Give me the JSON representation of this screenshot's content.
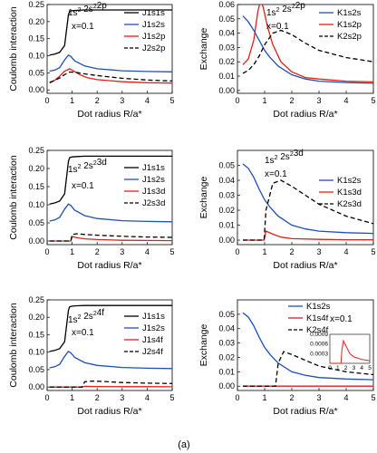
{
  "figure_label": "(a)",
  "chart_data": [
    {
      "type": "line",
      "panel": "coulomb-2p",
      "ylabel": "Coulomb interaction",
      "xlabel": "Dot radius R/a*",
      "xlim": [
        0,
        5
      ],
      "ylim": [
        -0.01,
        0.25
      ],
      "xticks": [
        0,
        1,
        2,
        3,
        4,
        5
      ],
      "yticks": [
        0.0,
        0.05,
        0.1,
        0.15,
        0.2,
        0.25
      ],
      "ytick_labels": [
        "0.00",
        "0.05",
        "0.10",
        "0.15",
        "0.20",
        "0.25"
      ],
      "annotations": [
        "1s² 2s²2p",
        "x=0.1"
      ],
      "legend_position": "top-right",
      "series": [
        {
          "name": "J1s1s",
          "color": "#000000",
          "dash": "solid",
          "x": [
            0.1,
            0.3,
            0.5,
            0.7,
            0.85,
            0.9,
            1.0,
            1.2,
            1.5,
            2.0,
            3.0,
            4.0,
            5.0
          ],
          "y": [
            0.102,
            0.105,
            0.11,
            0.13,
            0.22,
            0.23,
            0.232,
            0.233,
            0.234,
            0.234,
            0.234,
            0.234,
            0.234
          ]
        },
        {
          "name": "J1s2s",
          "color": "#1f4fb5",
          "dash": "solid",
          "x": [
            0.1,
            0.3,
            0.5,
            0.7,
            0.85,
            0.95,
            1.1,
            1.5,
            2.0,
            3.0,
            4.0,
            5.0
          ],
          "y": [
            0.055,
            0.058,
            0.065,
            0.088,
            0.102,
            0.098,
            0.085,
            0.07,
            0.062,
            0.056,
            0.054,
            0.053
          ]
        },
        {
          "name": "J1s2p",
          "color": "#e0201b",
          "dash": "solid",
          "x": [
            0.1,
            0.3,
            0.5,
            0.7,
            0.9,
            1.0,
            1.3,
            1.6,
            2.0,
            3.0,
            4.0,
            5.0
          ],
          "y": [
            0.02,
            0.028,
            0.04,
            0.055,
            0.062,
            0.058,
            0.045,
            0.036,
            0.03,
            0.024,
            0.021,
            0.02
          ]
        },
        {
          "name": "J2s2p",
          "color": "#000000",
          "dash": "dashed",
          "x": [
            0.1,
            0.3,
            0.5,
            0.7,
            0.9,
            1.1,
            1.4,
            2.0,
            3.0,
            4.0,
            5.0
          ],
          "y": [
            0.022,
            0.028,
            0.035,
            0.045,
            0.052,
            0.052,
            0.048,
            0.042,
            0.034,
            0.029,
            0.026
          ]
        }
      ]
    },
    {
      "type": "line",
      "panel": "exchange-2p",
      "ylabel": "Exchange",
      "xlabel": "Dot radius R/a*",
      "xlim": [
        0,
        5
      ],
      "ylim": [
        -0.002,
        0.06
      ],
      "xticks": [
        0,
        1,
        2,
        3,
        4,
        5
      ],
      "yticks": [
        0.0,
        0.01,
        0.02,
        0.03,
        0.04,
        0.05,
        0.06
      ],
      "ytick_labels": [
        "0.00",
        "0.01",
        "0.02",
        "0.03",
        "0.04",
        "0.05",
        "0.06"
      ],
      "annotations": [
        "1s² 2s²2p",
        "x=0.1"
      ],
      "legend_position": "top-right",
      "series": [
        {
          "name": "K1s2s",
          "color": "#1f4fb5",
          "dash": "solid",
          "x": [
            0.2,
            0.4,
            0.6,
            0.8,
            1.0,
            1.2,
            1.5,
            2.0,
            2.5,
            3.0,
            4.0,
            5.0
          ],
          "y": [
            0.052,
            0.048,
            0.042,
            0.035,
            0.028,
            0.023,
            0.017,
            0.011,
            0.008,
            0.0065,
            0.0055,
            0.005
          ]
        },
        {
          "name": "K1s2p",
          "color": "#e0201b",
          "dash": "solid",
          "x": [
            0.2,
            0.4,
            0.6,
            0.75,
            0.85,
            0.95,
            1.1,
            1.3,
            1.6,
            2.0,
            2.5,
            3.0,
            4.0,
            5.0
          ],
          "y": [
            0.018,
            0.022,
            0.035,
            0.055,
            0.063,
            0.058,
            0.045,
            0.032,
            0.02,
            0.013,
            0.009,
            0.008,
            0.0065,
            0.006
          ]
        },
        {
          "name": "K2s2p",
          "color": "#000000",
          "dash": "dashed",
          "x": [
            0.2,
            0.4,
            0.6,
            0.8,
            1.0,
            1.3,
            1.6,
            2.0,
            2.5,
            3.0,
            4.0,
            5.0
          ],
          "y": [
            0.012,
            0.014,
            0.018,
            0.024,
            0.032,
            0.04,
            0.042,
            0.039,
            0.033,
            0.028,
            0.023,
            0.02
          ]
        }
      ]
    },
    {
      "type": "line",
      "panel": "coulomb-3d",
      "ylabel": "Coulomb interaction",
      "xlabel": "Dot radius R/a*",
      "xlim": [
        0,
        5
      ],
      "ylim": [
        -0.01,
        0.25
      ],
      "xticks": [
        0,
        1,
        2,
        3,
        4,
        5
      ],
      "yticks": [
        0.0,
        0.05,
        0.1,
        0.15,
        0.2,
        0.25
      ],
      "ytick_labels": [
        "0.00",
        "0.05",
        "0.10",
        "0.15",
        "0.20",
        "0.25"
      ],
      "annotations": [
        "1s² 2s²3d",
        "x=0.1"
      ],
      "legend_position": "top-right",
      "series": [
        {
          "name": "J1s1s",
          "color": "#000000",
          "dash": "solid",
          "x": [
            0.1,
            0.3,
            0.5,
            0.7,
            0.85,
            0.9,
            1.0,
            1.2,
            1.5,
            2.0,
            3.0,
            4.0,
            5.0
          ],
          "y": [
            0.102,
            0.105,
            0.11,
            0.13,
            0.22,
            0.23,
            0.232,
            0.233,
            0.234,
            0.234,
            0.234,
            0.234,
            0.234
          ]
        },
        {
          "name": "J1s2s",
          "color": "#1f4fb5",
          "dash": "solid",
          "x": [
            0.1,
            0.3,
            0.5,
            0.7,
            0.85,
            0.95,
            1.1,
            1.5,
            2.0,
            3.0,
            4.0,
            5.0
          ],
          "y": [
            0.055,
            0.058,
            0.065,
            0.088,
            0.102,
            0.098,
            0.085,
            0.07,
            0.062,
            0.056,
            0.054,
            0.053
          ]
        },
        {
          "name": "J1s3d",
          "color": "#e0201b",
          "dash": "solid",
          "x": [
            0.1,
            0.8,
            0.95,
            1.0,
            1.2,
            1.5,
            2.0,
            3.0,
            4.0,
            5.0
          ],
          "y": [
            0.0,
            0.0,
            0.0,
            0.012,
            0.009,
            0.006,
            0.004,
            0.002,
            0.0015,
            0.001
          ]
        },
        {
          "name": "J2s3d",
          "color": "#000000",
          "dash": "dashed",
          "x": [
            0.1,
            0.8,
            0.95,
            1.0,
            1.2,
            1.5,
            2.0,
            3.0,
            4.0,
            5.0
          ],
          "y": [
            0.0,
            0.0,
            0.0,
            0.018,
            0.02,
            0.018,
            0.016,
            0.013,
            0.011,
            0.01
          ]
        }
      ]
    },
    {
      "type": "line",
      "panel": "exchange-3d",
      "ylabel": "Exchange",
      "xlabel": "Dot radius R/a*",
      "xlim": [
        0,
        5
      ],
      "ylim": [
        -0.003,
        0.06
      ],
      "xticks": [
        0,
        1,
        2,
        3,
        4,
        5
      ],
      "yticks": [
        0.0,
        0.01,
        0.02,
        0.03,
        0.04,
        0.05
      ],
      "ytick_labels": [
        "0.00",
        "0.01",
        "0.02",
        "0.03",
        "0.04",
        "0.05"
      ],
      "annotations": [
        "1s² 2s²3d",
        "x=0.1"
      ],
      "legend_position": "right",
      "series": [
        {
          "name": "K1s2s",
          "color": "#1f4fb5",
          "dash": "solid",
          "x": [
            0.2,
            0.4,
            0.6,
            0.8,
            1.0,
            1.2,
            1.5,
            2.0,
            2.5,
            3.0,
            4.0,
            5.0
          ],
          "y": [
            0.051,
            0.048,
            0.042,
            0.034,
            0.027,
            0.022,
            0.016,
            0.01,
            0.0075,
            0.006,
            0.005,
            0.0045
          ]
        },
        {
          "name": "K1s3d",
          "color": "#e0201b",
          "dash": "solid",
          "x": [
            0.2,
            0.9,
            0.98,
            1.05,
            1.3,
            1.6,
            2.0,
            3.0,
            4.0,
            5.0
          ],
          "y": [
            0.0,
            0.0,
            0.0,
            0.006,
            0.004,
            0.002,
            0.001,
            0.0005,
            0.0003,
            0.0002
          ]
        },
        {
          "name": "K2s3d",
          "color": "#000000",
          "dash": "dashed",
          "x": [
            0.2,
            0.9,
            0.98,
            1.05,
            1.3,
            1.6,
            2.0,
            2.5,
            3.0,
            4.0,
            5.0
          ],
          "y": [
            0.0,
            0.0,
            0.0,
            0.02,
            0.038,
            0.04,
            0.036,
            0.03,
            0.024,
            0.016,
            0.011
          ]
        }
      ]
    },
    {
      "type": "line",
      "panel": "coulomb-4f",
      "ylabel": "Coulomb interaction",
      "xlabel": "Dot radius R/a*",
      "xlim": [
        0,
        5
      ],
      "ylim": [
        -0.01,
        0.25
      ],
      "xticks": [
        0,
        1,
        2,
        3,
        4,
        5
      ],
      "yticks": [
        0.0,
        0.05,
        0.1,
        0.15,
        0.2,
        0.25
      ],
      "ytick_labels": [
        "0.00",
        "0.05",
        "0.10",
        "0.15",
        "0.20",
        "0.25"
      ],
      "annotations": [
        "1s² 2s²4f",
        "x=0.1"
      ],
      "legend_position": "top-right",
      "series": [
        {
          "name": "J1s1s",
          "color": "#000000",
          "dash": "solid",
          "x": [
            0.1,
            0.3,
            0.5,
            0.7,
            0.85,
            0.9,
            1.0,
            1.2,
            1.5,
            2.0,
            3.0,
            4.0,
            5.0
          ],
          "y": [
            0.102,
            0.105,
            0.11,
            0.13,
            0.22,
            0.23,
            0.232,
            0.233,
            0.234,
            0.234,
            0.234,
            0.234,
            0.234
          ]
        },
        {
          "name": "J1s2s",
          "color": "#1f4fb5",
          "dash": "solid",
          "x": [
            0.1,
            0.3,
            0.5,
            0.7,
            0.85,
            0.95,
            1.1,
            1.5,
            2.0,
            3.0,
            4.0,
            5.0
          ],
          "y": [
            0.055,
            0.058,
            0.065,
            0.088,
            0.102,
            0.098,
            0.085,
            0.07,
            0.062,
            0.056,
            0.054,
            0.053
          ]
        },
        {
          "name": "J1s4f",
          "color": "#e0201b",
          "dash": "solid",
          "x": [
            0.1,
            1.4,
            1.5,
            2.0,
            3.0,
            4.0,
            5.0
          ],
          "y": [
            0.0,
            0.0,
            0.002,
            0.0015,
            0.001,
            0.0008,
            0.0006
          ]
        },
        {
          "name": "J2s4f",
          "color": "#000000",
          "dash": "dashed",
          "x": [
            0.1,
            1.4,
            1.5,
            1.8,
            2.2,
            3.0,
            4.0,
            5.0
          ],
          "y": [
            0.0,
            0.0,
            0.015,
            0.017,
            0.016,
            0.013,
            0.011,
            0.01
          ]
        }
      ]
    },
    {
      "type": "line",
      "panel": "exchange-4f",
      "ylabel": "Exchange",
      "xlabel": "Dot radius R/a*",
      "xlim": [
        0,
        5
      ],
      "ylim": [
        -0.003,
        0.06
      ],
      "xticks": [
        0,
        1,
        2,
        3,
        4,
        5
      ],
      "yticks": [
        0.0,
        0.01,
        0.02,
        0.03,
        0.04,
        0.05
      ],
      "ytick_labels": [
        "0.00",
        "0.01",
        "0.02",
        "0.03",
        "0.04",
        "0.05"
      ],
      "annotations": [
        "x=0.1"
      ],
      "legend_position": "top-right",
      "series": [
        {
          "name": "K1s2s",
          "color": "#1f4fb5",
          "dash": "solid",
          "x": [
            0.2,
            0.4,
            0.6,
            0.8,
            1.0,
            1.2,
            1.5,
            2.0,
            2.5,
            3.0,
            4.0,
            5.0
          ],
          "y": [
            0.051,
            0.048,
            0.042,
            0.034,
            0.027,
            0.022,
            0.016,
            0.01,
            0.0075,
            0.006,
            0.005,
            0.0045
          ]
        },
        {
          "name": "K1s4f",
          "color": "#e0201b",
          "dash": "solid",
          "x": [
            0.2,
            1.4,
            5.0
          ],
          "y": [
            0.0,
            0.0,
            0.0
          ]
        },
        {
          "name": "K2s4f",
          "color": "#000000",
          "dash": "dashed",
          "x": [
            0.2,
            1.4,
            1.5,
            1.7,
            2.0,
            2.5,
            3.0,
            4.0,
            5.0
          ],
          "y": [
            0.0,
            0.0,
            0.016,
            0.024,
            0.022,
            0.018,
            0.014,
            0.01,
            0.008
          ]
        }
      ],
      "inset": {
        "xlim": [
          0,
          5
        ],
        "ylim": [
          0,
          0.0009
        ],
        "xticks": [
          0,
          1,
          2,
          3,
          4,
          5
        ],
        "yticks": [
          0.0003,
          0.0006,
          0.0009
        ],
        "ytick_labels": [
          "0.0003",
          "0.0006",
          "0.0009"
        ],
        "series": [
          {
            "name": "K1s4f",
            "color": "#e0201b",
            "dash": "solid",
            "x": [
              0,
              1.4,
              1.5,
              1.7,
              2.0,
              2.5,
              3.0,
              4.0,
              5.0
            ],
            "y": [
              0.0,
              0.0,
              0.0004,
              0.0007,
              0.00055,
              0.0003,
              0.0002,
              0.00012,
              8e-05
            ]
          }
        ]
      }
    }
  ]
}
